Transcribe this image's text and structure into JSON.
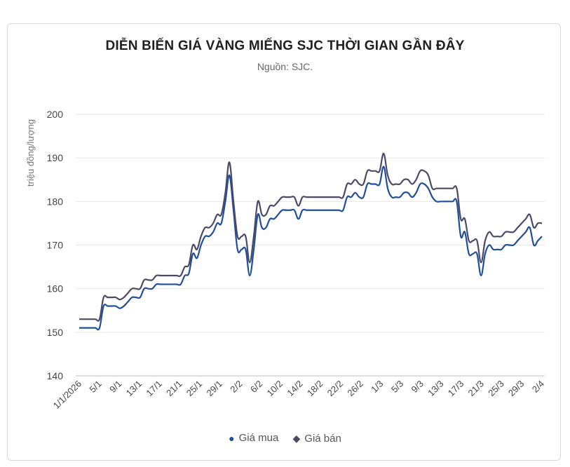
{
  "chart_data": {
    "type": "line",
    "title": "DIỄN BIẾN GIÁ VÀNG MIẾNG SJC THỜI GIAN GẦN ĐÂY",
    "subtitle": "Nguồn: SJC.",
    "ylabel": "triệu đồng/lượng",
    "xlabel": "",
    "ylim": [
      140,
      200
    ],
    "yticks": [
      140,
      150,
      160,
      170,
      180,
      190,
      200
    ],
    "xtick_labels": [
      "1/1/2026",
      "5/1",
      "9/1",
      "13/1",
      "17/1",
      "21/1",
      "25/1",
      "29/1",
      "2/2",
      "6/2",
      "10/2",
      "14/2",
      "18/2",
      "22/2",
      "26/2",
      "1/3",
      "5/3",
      "9/3",
      "13/3",
      "17/3",
      "21/3",
      "25/3",
      "29/3",
      "2/4"
    ],
    "grid": true,
    "legend_position": "bottom",
    "series": [
      {
        "name": "Giá mua",
        "color": "#1f4e9c",
        "marker": "●",
        "values": [
          151,
          151,
          151,
          151,
          151,
          151,
          156,
          156,
          156,
          156,
          155.5,
          156,
          157,
          158,
          158,
          158,
          160,
          160,
          160,
          161,
          161,
          161,
          161,
          161,
          161,
          161,
          163,
          163.5,
          168,
          167,
          170,
          172,
          172,
          173,
          175,
          175,
          180,
          186,
          178,
          169,
          169,
          169,
          163,
          169,
          177,
          174,
          174,
          176,
          176,
          177,
          178,
          178,
          178,
          178,
          176,
          178,
          178,
          178,
          178,
          178,
          178,
          178,
          178,
          178,
          178,
          178,
          181,
          181,
          182,
          181,
          181,
          184,
          184,
          184,
          184,
          188,
          183,
          181,
          181,
          181,
          182,
          182,
          181,
          182,
          184,
          184,
          183,
          181,
          180,
          180,
          180,
          180,
          180,
          180,
          172,
          173,
          168,
          168,
          168,
          163,
          168,
          170,
          169,
          169,
          169,
          170,
          170,
          170,
          171,
          172,
          173,
          174,
          170,
          171,
          172
        ]
      },
      {
        "name": "Giá bán",
        "color": "#4a4a68",
        "marker": "◆",
        "values": [
          153,
          153,
          153,
          153,
          153,
          153,
          158,
          158,
          158,
          158,
          157.5,
          158,
          159,
          160,
          160,
          160,
          162,
          162,
          162,
          163,
          163,
          163,
          163,
          163,
          163,
          163,
          165,
          165.5,
          170,
          169,
          172,
          174,
          174,
          175,
          177,
          177,
          182,
          189,
          180,
          172,
          172,
          172,
          166,
          172,
          180,
          177,
          177,
          179,
          179,
          180,
          181,
          181,
          181,
          181,
          179,
          181,
          181,
          181,
          181,
          181,
          181,
          181,
          181,
          181,
          181,
          181,
          184,
          184,
          185,
          184,
          184,
          187,
          187,
          187,
          187,
          191,
          186,
          184,
          184,
          184,
          185,
          185,
          184,
          185,
          187,
          187,
          186,
          183,
          183,
          183,
          183,
          183,
          183,
          183,
          176,
          176,
          171,
          171,
          171,
          166,
          171,
          173,
          172,
          172,
          172,
          173,
          173,
          173,
          174,
          175,
          176,
          177,
          174,
          175,
          175
        ]
      }
    ]
  }
}
